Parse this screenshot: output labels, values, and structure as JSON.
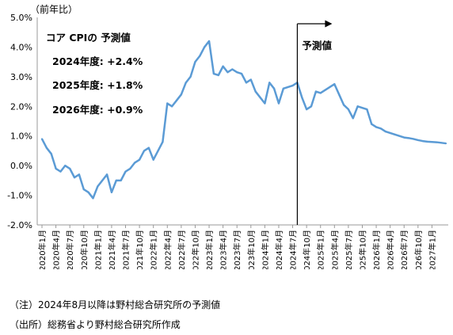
{
  "chart_data": {
    "type": "line",
    "unit_label": "（前年比）",
    "y_ticks": [
      "5.0%",
      "4.0%",
      "3.0%",
      "2.0%",
      "1.0%",
      "0.0%",
      "-1.0%",
      "-2.0%"
    ],
    "ylim": [
      -2,
      5
    ],
    "grid": false,
    "line_color": "#5b9bd5",
    "x_labels": [
      "2020年1月",
      "2020年4月",
      "2020年7月",
      "2020年10月",
      "2021年1月",
      "2021年4月",
      "2021年7月",
      "2021年10月",
      "2022年1月",
      "2022年4月",
      "2022年7月",
      "2022年10月",
      "2023年1月",
      "2023年4月",
      "2023年7月",
      "2023年10月",
      "2024年1月",
      "2024年4月",
      "2024年7月",
      "2024年10月",
      "2025年1月",
      "2025年4月",
      "2025年7月",
      "2025年10月",
      "2026年1月",
      "2026年4月",
      "2026年7月",
      "2026年10月",
      "2027年1月"
    ],
    "values": [
      0.9,
      0.6,
      0.4,
      -0.1,
      -0.2,
      0.0,
      -0.1,
      -0.4,
      -0.3,
      -0.8,
      -0.9,
      -1.1,
      -0.7,
      -0.5,
      -0.3,
      -0.9,
      -0.5,
      -0.5,
      -0.2,
      -0.1,
      0.1,
      0.2,
      0.5,
      0.6,
      0.2,
      0.5,
      0.8,
      2.1,
      2.0,
      2.2,
      2.4,
      2.8,
      3.0,
      3.5,
      3.7,
      4.0,
      4.2,
      3.1,
      3.05,
      3.35,
      3.15,
      3.25,
      3.15,
      3.1,
      2.8,
      2.9,
      2.5,
      2.3,
      2.1,
      2.8,
      2.6,
      2.1,
      2.6,
      2.65,
      2.7,
      2.8,
      2.3,
      1.9,
      2.0,
      2.5,
      2.45,
      2.55,
      2.65,
      2.75,
      2.4,
      2.05,
      1.9,
      1.6,
      2.0,
      1.95,
      1.9,
      1.4,
      1.3,
      1.25,
      1.15,
      1.1,
      1.05,
      1.0,
      0.95,
      0.93,
      0.9,
      0.86,
      0.83,
      0.81,
      0.8,
      0.79,
      0.77,
      0.75
    ],
    "forecast_start_index": 55,
    "forecast_label": "予測値",
    "annotations": {
      "title": "コア CPIの 予測値",
      "lines": [
        "2024年度: +2.4%",
        "2025年度: +1.8%",
        "2026年度: +0.9%"
      ]
    }
  },
  "notes": {
    "note": "（注）2024年8月以降は野村総合研究所の予測値",
    "source": "（出所）総務省より野村総合研究所作成"
  }
}
